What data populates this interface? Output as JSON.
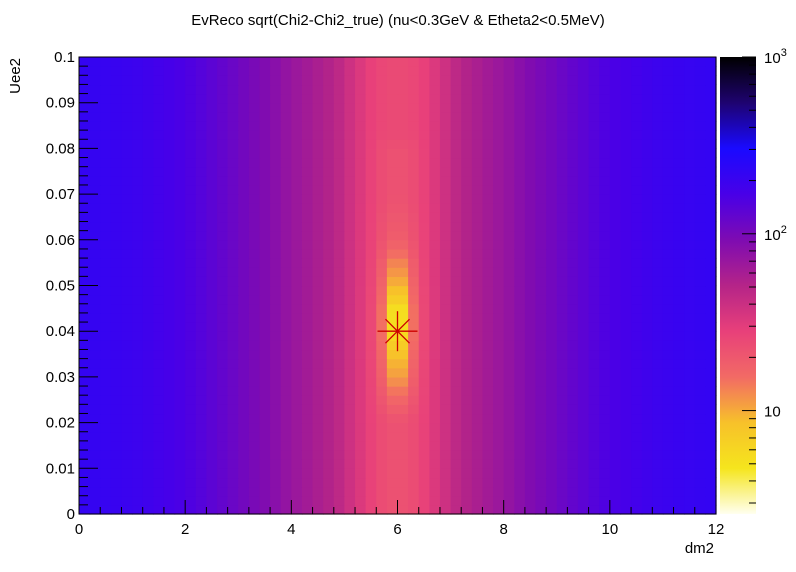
{
  "chart_data": {
    "type": "heatmap",
    "title": "EvReco sqrt(Chi2-Chi2_true) (nu<0.3GeV & Etheta2<0.5MeV)",
    "xlabel": "dm2",
    "ylabel": "Uee2",
    "xlim": [
      0,
      12
    ],
    "ylim": [
      0,
      0.1
    ],
    "x_ticks": [
      "0",
      "2",
      "4",
      "6",
      "8",
      "10",
      "12"
    ],
    "y_ticks": [
      "0",
      "0.01",
      "0.02",
      "0.03",
      "0.04",
      "0.05",
      "0.06",
      "0.07",
      "0.08",
      "0.09",
      "0.1"
    ],
    "colorbar": {
      "scale": "log",
      "range": [
        2.6,
        1000
      ],
      "major_labels": [
        {
          "base": "10",
          "exp": "",
          "value": 10
        },
        {
          "base": "10",
          "exp": "2",
          "value": 100
        },
        {
          "base": "10",
          "exp": "3",
          "value": 1000
        }
      ],
      "palette": [
        "#ffffef",
        "#f5e51d",
        "#f7c12a",
        "#f26a65",
        "#e8407a",
        "#b52488",
        "#7e0bb2",
        "#4800e8",
        "#1a0aff",
        "#1e0370",
        "#000000"
      ]
    },
    "grid": false,
    "marker": {
      "type": "star",
      "x": 6.0,
      "y": 0.04,
      "color": "#cc0000"
    },
    "cells": {
      "nx": 60,
      "ny": 50
    },
    "z_model": {
      "minimum": {
        "x": 6.0,
        "y": 0.042,
        "value": 2.6
      },
      "x_profile": [
        [
          0,
          220
        ],
        [
          1,
          200
        ],
        [
          2,
          160
        ],
        [
          3,
          110
        ],
        [
          4,
          70
        ],
        [
          4.8,
          50
        ],
        [
          5.2,
          35
        ],
        [
          5.6,
          26
        ],
        [
          6,
          24
        ],
        [
          6.4,
          26
        ],
        [
          6.8,
          35
        ],
        [
          7.2,
          50
        ],
        [
          8,
          70
        ],
        [
          9,
          110
        ],
        [
          10,
          160
        ],
        [
          11,
          200
        ],
        [
          12,
          220
        ]
      ],
      "y_profile_at_center": [
        [
          0,
          22
        ],
        [
          0.02,
          22
        ],
        [
          0.03,
          10
        ],
        [
          0.035,
          7
        ],
        [
          0.04,
          3.5
        ],
        [
          0.045,
          3.8
        ],
        [
          0.05,
          8
        ],
        [
          0.055,
          12
        ],
        [
          0.06,
          18
        ],
        [
          0.07,
          22
        ],
        [
          0.08,
          22
        ],
        [
          0.09,
          30
        ],
        [
          0.1,
          32
        ]
      ]
    }
  }
}
